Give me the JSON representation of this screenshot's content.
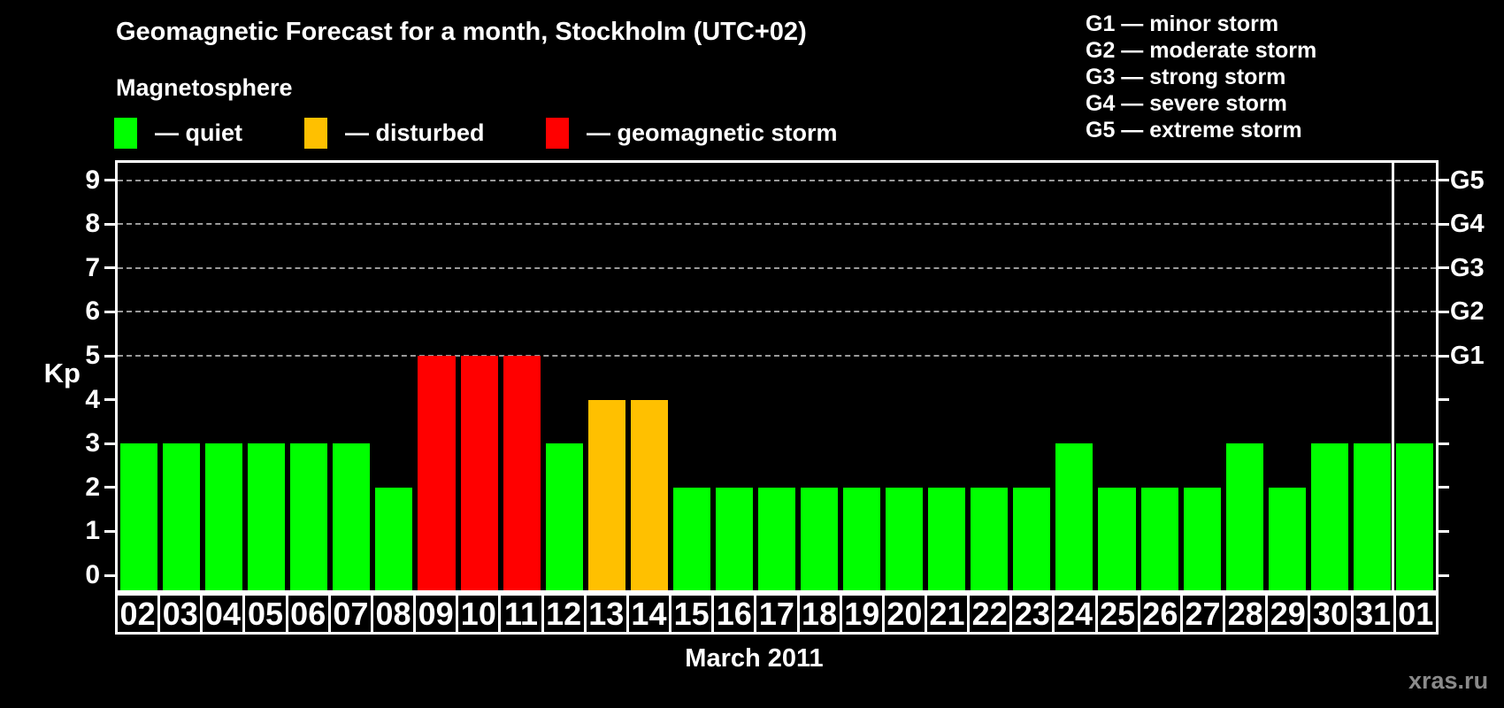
{
  "title": "Geomagnetic Forecast for a month, Stockholm (UTC+02)",
  "subtitle": "Magnetosphere",
  "legend": {
    "items": [
      {
        "name": "quiet",
        "label": "— quiet",
        "color": "#00ff00"
      },
      {
        "name": "disturbed",
        "label": "— disturbed",
        "color": "#ffc000"
      },
      {
        "name": "storm",
        "label": "— geomagnetic storm",
        "color": "#ff0000"
      }
    ]
  },
  "g_legend": [
    "G1 — minor storm",
    "G2 — moderate storm",
    "G3 — strong storm",
    "G4 — severe storm",
    "G5 — extreme storm"
  ],
  "watermark": "xras.ru",
  "chart_data": {
    "type": "bar",
    "title": "Geomagnetic Forecast for a month, Stockholm (UTC+02)",
    "xlabel": "March 2011",
    "ylabel": "Kp",
    "ylim": [
      0,
      9.4
    ],
    "yticks": [
      0,
      1,
      2,
      3,
      4,
      5,
      6,
      7,
      8,
      9
    ],
    "gridlines_at_kp": [
      5,
      6,
      7,
      8,
      9
    ],
    "grid": "horizontal dashed lines at Kp 5-9 only",
    "legend_position": "top-left (magnetosphere states), top-right (G storm scale)",
    "right_axis": [
      {
        "kp": 5,
        "label": "G1"
      },
      {
        "kp": 6,
        "label": "G2"
      },
      {
        "kp": 7,
        "label": "G3"
      },
      {
        "kp": 8,
        "label": "G4"
      },
      {
        "kp": 9,
        "label": "G5"
      }
    ],
    "categories": [
      "02",
      "03",
      "04",
      "05",
      "06",
      "07",
      "08",
      "09",
      "10",
      "11",
      "12",
      "13",
      "14",
      "15",
      "16",
      "17",
      "18",
      "19",
      "20",
      "21",
      "22",
      "23",
      "24",
      "25",
      "26",
      "27",
      "28",
      "29",
      "30",
      "31",
      "01"
    ],
    "values": [
      3,
      3,
      3,
      3,
      3,
      3,
      2,
      5,
      5,
      5,
      3,
      4,
      4,
      2,
      2,
      2,
      2,
      2,
      2,
      2,
      2,
      2,
      3,
      2,
      2,
      2,
      3,
      2,
      3,
      3,
      3
    ],
    "statuses": [
      "quiet",
      "quiet",
      "quiet",
      "quiet",
      "quiet",
      "quiet",
      "quiet",
      "storm",
      "storm",
      "storm",
      "quiet",
      "disturbed",
      "disturbed",
      "quiet",
      "quiet",
      "quiet",
      "quiet",
      "quiet",
      "quiet",
      "quiet",
      "quiet",
      "quiet",
      "quiet",
      "quiet",
      "quiet",
      "quiet",
      "quiet",
      "quiet",
      "quiet",
      "quiet",
      "quiet"
    ],
    "status_colors": {
      "quiet": "#00ff00",
      "disturbed": "#ffc000",
      "storm": "#ff0000"
    },
    "month_separator_before": "01"
  }
}
